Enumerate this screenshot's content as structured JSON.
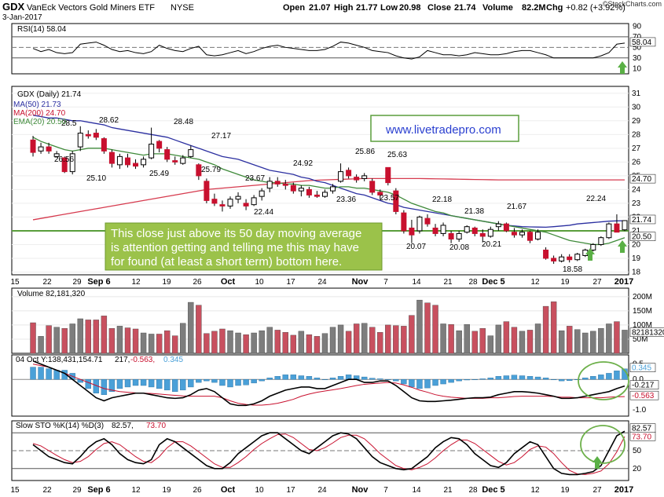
{
  "header": {
    "symbol": "GDX",
    "name": "VanEck Vectors Gold Miners ETF",
    "exchange": "NYSE",
    "date": "3-Jan-2017",
    "open_lbl": "Open",
    "open": "21.07",
    "high_lbl": "High",
    "high": "21.77",
    "low_lbl": "Low",
    "low": "20.98",
    "close_lbl": "Close",
    "close": "21.74",
    "volume_lbl": "Volume",
    "volume": "82.2M",
    "chg_lbl": "Chg",
    "chg": "+0.82 (+3.92%)",
    "brand": "©StockCharts.com"
  },
  "rsi": {
    "label": "RSI(14) 58.04",
    "value_box": "58.04",
    "ticks": [
      "90",
      "70",
      "50",
      "30",
      "10"
    ]
  },
  "price": {
    "legend_title": "GDX (Daily) 21.74",
    "legend_ma50": "MA(50) 21.73",
    "legend_ma200": "MA(200) 24.70",
    "legend_ema20": "EMA(20) 20.50",
    "close_box": "21.74",
    "ma200_box": "24.70",
    "ema_box": "20.50",
    "ticks": [
      "31",
      "30",
      "29",
      "28",
      "27",
      "26",
      "25",
      "24",
      "23",
      "22",
      "21",
      "20",
      "19",
      "18"
    ],
    "watermark": "www.livetradepro.com",
    "note_line1": "This close just above its 50 day moving average",
    "note_line2": "is attention getting and telling me this may have",
    "note_line3": "for found (at least a short term) bottom here."
  },
  "volume": {
    "label": "Volume 82,181,320",
    "box": "82181320",
    "ticks": [
      "200M",
      "150M",
      "100M",
      "50M"
    ]
  },
  "macd": {
    "label_a": "04 Oct Y:138,431,154.71",
    "label_b": "217,",
    "label_c": "-0.563,",
    "label_d": "0.345",
    "box_hist": "0.345",
    "box_macd": "-0.217",
    "box_signal": "-0.563",
    "ticks": [
      "0.5",
      "0.0",
      "-0.5",
      "-1.0"
    ]
  },
  "sto": {
    "label_a": "Slow STO %K(14) %D(3)",
    "label_k": "82.57,",
    "label_d": "73.70",
    "box_k": "82.57",
    "box_d": "73.70",
    "ticks": [
      "80",
      "50",
      "20"
    ]
  },
  "xaxis": {
    "top": [
      "15",
      "22",
      "29",
      "Sep 6",
      "12",
      "19",
      "26",
      "Oct",
      "10",
      "17",
      "24",
      "Nov",
      "7",
      "14",
      "21",
      "28",
      "Dec 5",
      "12",
      "19",
      "27",
      "2017"
    ],
    "bottom": [
      "15",
      "22",
      "29",
      "Sep 6",
      "12",
      "19",
      "26",
      "Oct",
      "10",
      "17",
      "24",
      "Nov",
      "7",
      "14",
      "21",
      "28",
      "Dec 5",
      "12",
      "19",
      "27",
      "2017"
    ]
  },
  "colors": {
    "up": "#ffffff",
    "down": "#c8102e",
    "ma50": "#2b2fa0",
    "ma200": "#d63a4e",
    "ema20": "#3f8a3a",
    "vol_up": "#7d7d7d",
    "vol_down": "#c8505f",
    "hist": "#4aa0d8",
    "note_bg": "#9bc24a",
    "circle": "#6db04a",
    "arrow": "#5ab045"
  },
  "chart_data": {
    "type": "candlestick",
    "title": "GDX VanEck Vectors Gold Miners ETF NYSE",
    "period": "Daily",
    "ylim": [
      17.8,
      31.5
    ],
    "annotations": [
      {
        "label": "28.62"
      },
      {
        "label": "28.5"
      },
      {
        "label": "26.56"
      },
      {
        "label": "25.10"
      },
      {
        "label": "25.49"
      },
      {
        "label": "28.48"
      },
      {
        "label": "25.79"
      },
      {
        "label": "27.17"
      },
      {
        "label": "23.67"
      },
      {
        "label": "22.44"
      },
      {
        "label": "24.92"
      },
      {
        "label": "23.36"
      },
      {
        "label": "25.86"
      },
      {
        "label": "25.63"
      },
      {
        "label": "23.57"
      },
      {
        "label": "20.07"
      },
      {
        "label": "22.18"
      },
      {
        "label": "20.08"
      },
      {
        "label": "21.38"
      },
      {
        "label": "20.21"
      },
      {
        "label": "21.67"
      },
      {
        "label": "18.58"
      },
      {
        "label": "22.24"
      }
    ],
    "candles": [
      [
        27.6,
        27.9,
        26.4,
        26.7
      ],
      [
        26.8,
        27.4,
        26.6,
        27.1
      ],
      [
        27.1,
        27.4,
        26.6,
        26.8
      ],
      [
        26.4,
        26.8,
        26.3,
        26.6
      ],
      [
        26.3,
        26.4,
        25.2,
        25.3
      ],
      [
        25.3,
        26.8,
        25.1,
        26.6
      ],
      [
        27.1,
        28.6,
        26.8,
        28.1
      ],
      [
        28.0,
        28.3,
        27.7,
        27.9
      ],
      [
        28.1,
        28.4,
        27.6,
        27.8
      ],
      [
        27.7,
        27.8,
        26.6,
        26.8
      ],
      [
        26.7,
        26.9,
        25.6,
        25.9
      ],
      [
        25.8,
        26.6,
        25.5,
        26.4
      ],
      [
        26.3,
        26.6,
        25.6,
        25.8
      ],
      [
        25.9,
        26.2,
        25.5,
        25.7
      ],
      [
        25.8,
        26.4,
        25.6,
        26.2
      ],
      [
        26.3,
        28.5,
        26.2,
        27.3
      ],
      [
        27.5,
        27.6,
        26.7,
        27.0
      ],
      [
        26.9,
        27.1,
        26.0,
        26.2
      ],
      [
        26.1,
        26.4,
        25.8,
        26.0
      ],
      [
        25.9,
        26.5,
        25.8,
        26.3
      ],
      [
        26.4,
        27.2,
        26.3,
        26.9
      ],
      [
        25.8,
        25.9,
        24.7,
        25.0
      ],
      [
        24.6,
        24.8,
        23.0,
        23.2
      ],
      [
        23.3,
        23.7,
        22.8,
        23.0
      ],
      [
        22.9,
        23.2,
        22.4,
        22.8
      ],
      [
        22.8,
        23.5,
        22.6,
        23.3
      ],
      [
        23.3,
        23.8,
        23.0,
        23.5
      ],
      [
        23.0,
        23.3,
        22.5,
        22.8
      ],
      [
        22.9,
        23.6,
        22.8,
        23.4
      ],
      [
        23.5,
        24.1,
        23.2,
        23.9
      ],
      [
        24.1,
        24.9,
        23.8,
        24.6
      ],
      [
        24.6,
        24.9,
        24.2,
        24.4
      ],
      [
        24.4,
        24.7,
        24.0,
        24.3
      ],
      [
        24.3,
        24.5,
        23.7,
        23.9
      ],
      [
        23.9,
        24.3,
        23.5,
        24.1
      ],
      [
        24.0,
        24.2,
        23.4,
        23.6
      ],
      [
        23.6,
        23.9,
        23.4,
        23.5
      ],
      [
        23.5,
        24.0,
        23.4,
        23.8
      ],
      [
        23.9,
        24.4,
        23.7,
        24.2
      ],
      [
        24.6,
        25.9,
        24.5,
        25.3
      ],
      [
        25.4,
        25.6,
        24.8,
        25.0
      ],
      [
        24.9,
        25.1,
        24.5,
        24.7
      ],
      [
        24.8,
        25.2,
        24.6,
        25.0
      ],
      [
        24.6,
        24.8,
        23.6,
        23.8
      ],
      [
        23.8,
        24.0,
        23.3,
        23.6
      ],
      [
        25.6,
        25.6,
        24.3,
        24.5
      ],
      [
        23.9,
        24.1,
        22.2,
        22.4
      ],
      [
        22.3,
        22.5,
        20.8,
        21.0
      ],
      [
        21.2,
        21.8,
        20.1,
        20.7
      ],
      [
        21.0,
        22.1,
        20.8,
        22.0
      ],
      [
        21.9,
        22.2,
        21.3,
        21.5
      ],
      [
        21.2,
        21.5,
        20.6,
        20.8
      ],
      [
        20.8,
        21.6,
        20.6,
        21.4
      ],
      [
        20.8,
        21.0,
        20.1,
        20.4
      ],
      [
        20.4,
        21.0,
        20.2,
        20.8
      ],
      [
        20.9,
        21.4,
        20.8,
        21.3
      ],
      [
        21.2,
        21.3,
        20.6,
        20.8
      ],
      [
        20.8,
        21.1,
        20.2,
        20.6
      ],
      [
        20.6,
        21.3,
        20.5,
        21.1
      ],
      [
        21.3,
        21.7,
        21.0,
        21.5
      ],
      [
        21.5,
        21.6,
        20.9,
        21.0
      ],
      [
        20.9,
        21.2,
        20.5,
        20.7
      ],
      [
        20.7,
        21.1,
        20.5,
        20.9
      ],
      [
        20.9,
        21.0,
        20.1,
        20.3
      ],
      [
        20.4,
        21.1,
        20.3,
        20.9
      ],
      [
        19.6,
        19.8,
        18.9,
        19.0
      ],
      [
        19.0,
        19.2,
        18.6,
        18.8
      ],
      [
        18.8,
        19.3,
        18.7,
        19.1
      ],
      [
        19.1,
        19.3,
        18.7,
        18.9
      ],
      [
        18.9,
        19.4,
        18.8,
        19.3
      ],
      [
        19.2,
        19.7,
        19.1,
        19.6
      ],
      [
        19.6,
        20.1,
        19.5,
        20.0
      ],
      [
        20.0,
        20.6,
        19.9,
        20.5
      ],
      [
        20.5,
        21.6,
        20.4,
        21.5
      ],
      [
        21.5,
        22.2,
        20.9,
        20.9
      ],
      [
        21.07,
        21.77,
        20.98,
        21.74
      ]
    ],
    "volume_m": [
      108,
      60,
      98,
      92,
      88,
      104,
      122,
      118,
      118,
      132,
      88,
      96,
      90,
      86,
      72,
      68,
      68,
      80,
      62,
      106,
      180,
      170,
      70,
      78,
      86,
      80,
      72,
      66,
      72,
      80,
      92,
      82,
      74,
      64,
      78,
      66,
      60,
      70,
      92,
      100,
      78,
      104,
      106,
      92,
      74,
      100,
      98,
      96,
      134,
      188,
      178,
      170,
      104,
      102,
      80,
      102,
      78,
      88,
      62,
      100,
      112,
      92,
      78,
      82,
      104,
      166,
      182,
      80,
      96,
      84,
      72,
      78,
      88,
      104,
      112,
      82
    ],
    "ma50": [
      29.4,
      29.3,
      29.2,
      29.2,
      29.1,
      29.0,
      29.0,
      28.9,
      28.8,
      28.7,
      28.5,
      28.4,
      28.3,
      28.2,
      28.1,
      28.0,
      27.9,
      27.8,
      27.6,
      27.4,
      27.2,
      27.0,
      26.8,
      26.6,
      26.4,
      26.3,
      26.2,
      26.0,
      25.8,
      25.6,
      25.4,
      25.3,
      25.2,
      25.1,
      24.9,
      24.8,
      24.6,
      24.5,
      24.3,
      24.1,
      23.9,
      23.7,
      23.6,
      23.4,
      23.2,
      23.0,
      22.9,
      22.7,
      22.6,
      22.5,
      22.4,
      22.3,
      22.2,
      22.1,
      22.0,
      21.9,
      21.8,
      21.7,
      21.6,
      21.5,
      21.4,
      21.35,
      21.3,
      21.28,
      21.27,
      21.26,
      21.3,
      21.35,
      21.4,
      21.5,
      21.55,
      21.6,
      21.65,
      21.7,
      21.72,
      21.73
    ],
    "ma200": [
      21.8,
      21.9,
      22.0,
      22.1,
      22.2,
      22.3,
      22.4,
      22.5,
      22.6,
      22.7,
      22.8,
      22.9,
      23.0,
      23.1,
      23.2,
      23.3,
      23.4,
      23.5,
      23.6,
      23.7,
      23.8,
      23.9,
      24.0,
      24.05,
      24.1,
      24.15,
      24.2,
      24.25,
      24.3,
      24.35,
      24.4,
      24.45,
      24.5,
      24.55,
      24.6,
      24.65,
      24.68,
      24.7,
      24.72,
      24.74,
      24.76,
      24.78,
      24.8,
      24.8,
      24.8,
      24.8,
      24.8,
      24.8,
      24.8,
      24.8,
      24.79,
      24.78,
      24.77,
      24.76,
      24.75,
      24.74,
      24.73,
      24.72,
      24.71,
      24.7,
      24.7,
      24.7,
      24.7,
      24.7,
      24.7,
      24.7,
      24.7,
      24.7,
      24.7,
      24.7,
      24.7,
      24.7,
      24.7,
      24.7,
      24.7,
      24.7
    ],
    "ema20": [
      27.8,
      27.5,
      27.3,
      27.1,
      26.9,
      26.8,
      26.9,
      27.0,
      27.0,
      27.0,
      26.9,
      26.8,
      26.7,
      26.6,
      26.5,
      26.6,
      26.6,
      26.6,
      26.5,
      26.4,
      26.3,
      26.2,
      26.0,
      25.8,
      25.5,
      25.3,
      25.1,
      24.9,
      24.7,
      24.6,
      24.5,
      24.5,
      24.4,
      24.4,
      24.3,
      24.3,
      24.2,
      24.1,
      24.1,
      24.2,
      24.2,
      24.1,
      24.1,
      24.0,
      23.9,
      23.8,
      23.6,
      23.3,
      23.0,
      22.8,
      22.6,
      22.4,
      22.3,
      22.1,
      22.0,
      21.9,
      21.8,
      21.7,
      21.6,
      21.5,
      21.4,
      21.3,
      21.2,
      21.1,
      21.0,
      20.9,
      20.7,
      20.5,
      20.3,
      20.2,
      20.1,
      20.0,
      20.0,
      20.1,
      20.3,
      20.5
    ],
    "rsi": [
      48,
      42,
      46,
      40,
      38,
      40,
      56,
      58,
      60,
      54,
      46,
      42,
      44,
      40,
      38,
      42,
      54,
      48,
      44,
      42,
      48,
      52,
      36,
      34,
      36,
      40,
      44,
      38,
      42,
      48,
      52,
      54,
      50,
      48,
      46,
      44,
      44,
      46,
      52,
      60,
      58,
      54,
      50,
      44,
      42,
      40,
      34,
      30,
      28,
      32,
      44,
      40,
      36,
      36,
      34,
      36,
      40,
      38,
      36,
      36,
      38,
      42,
      44,
      44,
      40,
      36,
      30,
      30,
      30,
      30,
      30,
      30,
      34,
      40,
      56,
      58
    ],
    "macd_line": [
      0.6,
      0.5,
      0.4,
      0.3,
      0.2,
      0.0,
      -0.2,
      -0.4,
      -0.6,
      -0.7,
      -0.6,
      -0.55,
      -0.5,
      -0.45,
      -0.45,
      -0.5,
      -0.55,
      -0.6,
      -0.62,
      -0.6,
      -0.5,
      -0.35,
      -0.3,
      -0.4,
      -0.6,
      -0.8,
      -0.85,
      -0.85,
      -0.8,
      -0.7,
      -0.55,
      -0.45,
      -0.35,
      -0.3,
      -0.25,
      -0.25,
      -0.3,
      -0.3,
      -0.2,
      -0.1,
      0.0,
      0.0,
      -0.1,
      -0.1,
      -0.05,
      -0.05,
      -0.2,
      -0.4,
      -0.6,
      -0.7,
      -0.72,
      -0.72,
      -0.7,
      -0.68,
      -0.65,
      -0.62,
      -0.6,
      -0.6,
      -0.58,
      -0.5,
      -0.45,
      -0.4,
      -0.4,
      -0.42,
      -0.45,
      -0.5,
      -0.55,
      -0.62,
      -0.62,
      -0.6,
      -0.55,
      -0.5,
      -0.45,
      -0.4,
      -0.3,
      -0.217
    ],
    "macd_signal": [
      0.5,
      0.45,
      0.4,
      0.3,
      0.2,
      0.1,
      0.0,
      -0.1,
      -0.2,
      -0.3,
      -0.35,
      -0.4,
      -0.42,
      -0.44,
      -0.45,
      -0.46,
      -0.48,
      -0.5,
      -0.52,
      -0.54,
      -0.55,
      -0.55,
      -0.55,
      -0.55,
      -0.6,
      -0.7,
      -0.78,
      -0.82,
      -0.84,
      -0.84,
      -0.82,
      -0.78,
      -0.72,
      -0.65,
      -0.55,
      -0.48,
      -0.42,
      -0.38,
      -0.34,
      -0.3,
      -0.25,
      -0.2,
      -0.16,
      -0.14,
      -0.12,
      -0.1,
      -0.12,
      -0.18,
      -0.26,
      -0.35,
      -0.42,
      -0.5,
      -0.55,
      -0.58,
      -0.6,
      -0.62,
      -0.62,
      -0.62,
      -0.6,
      -0.6,
      -0.58,
      -0.56,
      -0.55,
      -0.55,
      -0.55,
      -0.55,
      -0.56,
      -0.58,
      -0.58,
      -0.6,
      -0.6,
      -0.6,
      -0.6,
      -0.58,
      -0.57,
      -0.563
    ],
    "sto_k": [
      60,
      50,
      40,
      35,
      30,
      28,
      40,
      55,
      65,
      70,
      60,
      45,
      35,
      30,
      28,
      35,
      60,
      70,
      65,
      55,
      45,
      35,
      25,
      20,
      20,
      30,
      45,
      55,
      65,
      75,
      80,
      80,
      70,
      60,
      50,
      45,
      55,
      65,
      75,
      80,
      78,
      70,
      55,
      40,
      30,
      25,
      20,
      18,
      20,
      30,
      40,
      55,
      65,
      72,
      70,
      60,
      45,
      35,
      25,
      22,
      30,
      45,
      55,
      65,
      60,
      40,
      20,
      12,
      10,
      10,
      12,
      15,
      25,
      50,
      75,
      82.57
    ],
    "sto_d": [
      62,
      58,
      50,
      42,
      35,
      30,
      32,
      40,
      52,
      62,
      65,
      60,
      50,
      40,
      32,
      30,
      40,
      55,
      65,
      65,
      58,
      48,
      38,
      28,
      22,
      22,
      30,
      40,
      52,
      62,
      70,
      77,
      78,
      72,
      62,
      52,
      50,
      55,
      63,
      72,
      76,
      76,
      70,
      58,
      45,
      35,
      25,
      20,
      18,
      22,
      28,
      38,
      50,
      60,
      68,
      68,
      62,
      52,
      42,
      32,
      26,
      30,
      40,
      52,
      58,
      56,
      45,
      30,
      17,
      11,
      10,
      12,
      16,
      28,
      48,
      73.7
    ],
    "hist": [
      0.4,
      0.4,
      0.35,
      0.3,
      0.3,
      0.2,
      -0.1,
      -0.3,
      -0.45,
      -0.5,
      -0.4,
      -0.3,
      -0.25,
      -0.2,
      -0.2,
      -0.25,
      -0.3,
      -0.35,
      -0.4,
      -0.35,
      -0.25,
      -0.1,
      -0.05,
      -0.1,
      -0.2,
      -0.25,
      -0.2,
      -0.18,
      -0.12,
      -0.05,
      0.05,
      0.1,
      0.15,
      0.15,
      0.12,
      0.1,
      0.05,
      0.0,
      0.05,
      0.1,
      0.15,
      0.12,
      0.08,
      0.04,
      0.02,
      0.0,
      -0.05,
      -0.15,
      -0.25,
      -0.3,
      -0.28,
      -0.2,
      -0.15,
      -0.1,
      -0.05,
      -0.02,
      0.0,
      0.02,
      0.05,
      0.1,
      0.12,
      0.14,
      0.12,
      0.1,
      0.08,
      0.05,
      0.0,
      -0.05,
      -0.04,
      0.0,
      0.05,
      0.1,
      0.15,
      0.2,
      0.28,
      0.345
    ]
  }
}
